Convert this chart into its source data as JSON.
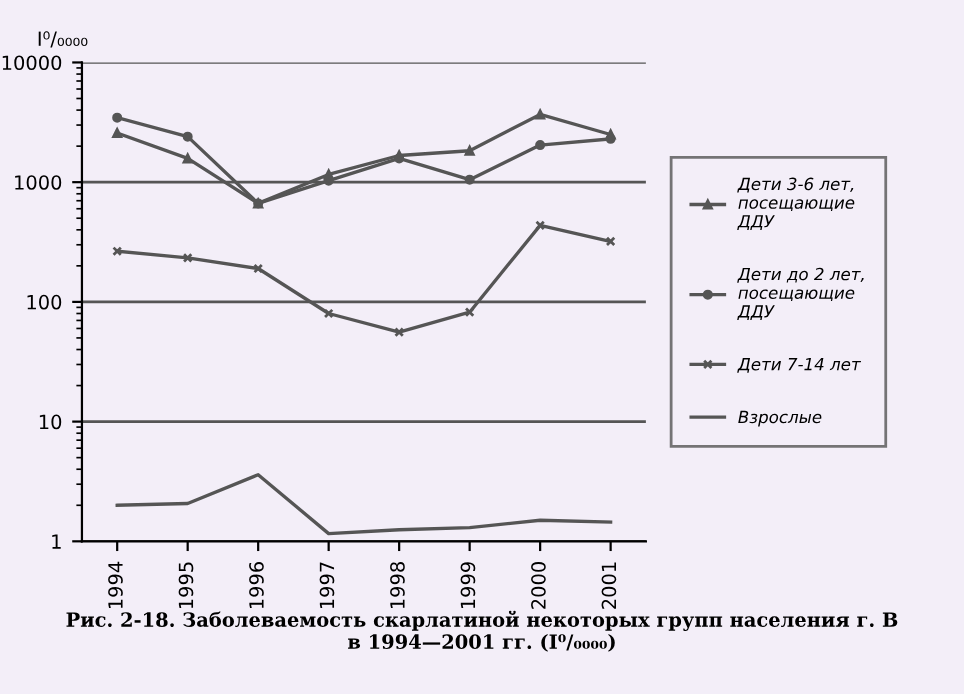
{
  "chart_data": {
    "type": "line",
    "ylabel": "I⁰/₀₀₀₀",
    "log": "y",
    "ylim": [
      1,
      10000
    ],
    "yticks": [
      1,
      10,
      100,
      1000,
      10000
    ],
    "grid": "y",
    "legend": "right",
    "categories": [
      "1994",
      "1995",
      "1996",
      "1997",
      "1998",
      "1999",
      "2000",
      "2001"
    ],
    "series": [
      {
        "name": "Дети 3-6 лет,\nпосещающие\nДДУ",
        "color": "#555555",
        "marker": "triangle",
        "values": [
          2570,
          1580,
          665,
          1160,
          1670,
          1830,
          3680,
          2500
        ]
      },
      {
        "name": "Дети до 2 лет,\nпосещающие\nДДУ",
        "color": "#555555",
        "marker": "circle",
        "values": [
          3460,
          2400,
          665,
          1030,
          1580,
          1050,
          2040,
          2300
        ]
      },
      {
        "name": "Дети 7-14 лет",
        "color": "#555555",
        "marker": "cross",
        "values": [
          265,
          233,
          190,
          80,
          56,
          82,
          436,
          320
        ]
      },
      {
        "name": "Взрослые",
        "color": "#555555",
        "marker": "none",
        "values": [
          2.0,
          2.07,
          3.6,
          1.16,
          1.25,
          1.3,
          1.5,
          1.45
        ]
      }
    ],
    "annotations": [
      "Рис. 2-18. Заболеваемость скарлатиной некоторых групп населения г. В\nв 1994—2001 гг. (I⁰/₀₀₀₀)"
    ]
  }
}
